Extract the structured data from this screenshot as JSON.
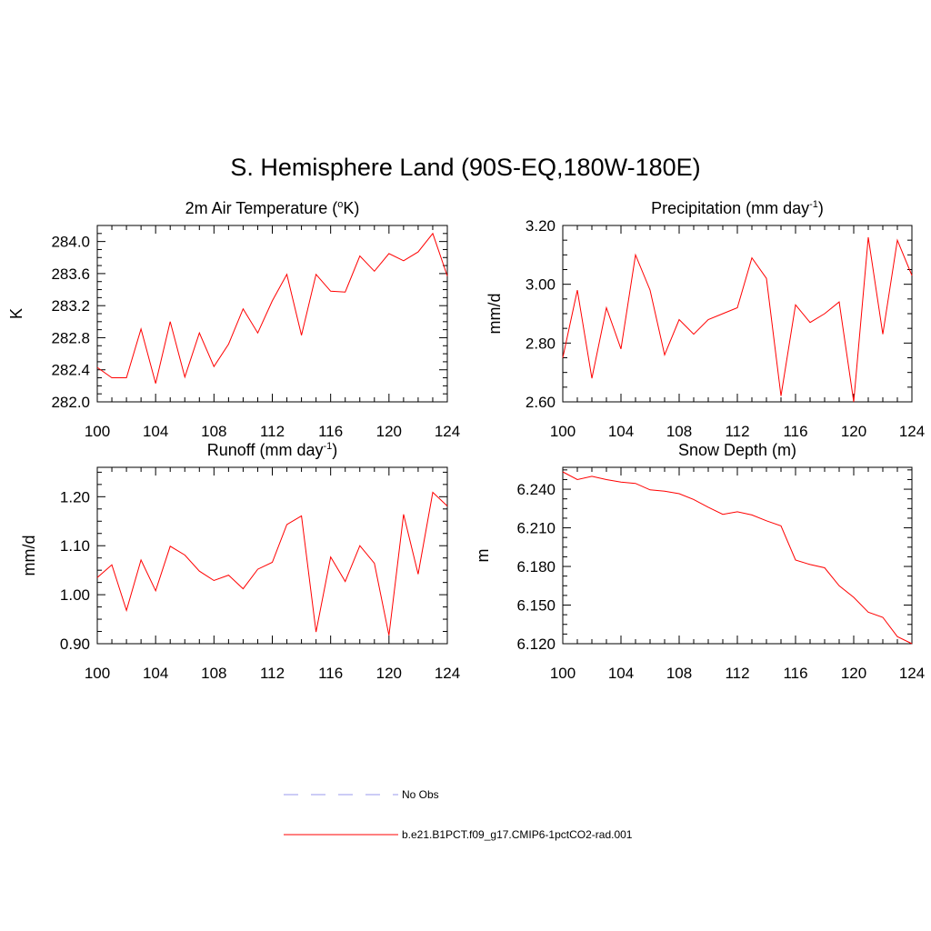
{
  "main_title": "S. Hemisphere Land (90S-EQ,180W-180E)",
  "legend": [
    {
      "label": "No Obs",
      "color": "#9999ee",
      "dash": true
    },
    {
      "label": "b.e21.B1PCT.f09_g17.CMIP6-1pctCO2-rad.001",
      "color": "#ff0000",
      "dash": false
    }
  ],
  "chart_data": [
    {
      "type": "line",
      "title": "2m Air Temperature (",
      "title_sup": "o",
      "title_post": "K)",
      "ylabel": "K",
      "xlim": [
        100,
        124
      ],
      "ylim": [
        282.0,
        284.2
      ],
      "xticks": [
        100,
        104,
        108,
        112,
        116,
        120,
        124
      ],
      "yticks": [
        282.0,
        282.4,
        282.8,
        283.2,
        283.6,
        284.0
      ],
      "ytick_labels": [
        "282.0",
        "282.4",
        "282.8",
        "283.2",
        "283.6",
        "284.0"
      ],
      "series_color": "#ff0000",
      "x": [
        100,
        101,
        102,
        103,
        104,
        105,
        106,
        107,
        108,
        109,
        110,
        111,
        112,
        113,
        114,
        115,
        116,
        117,
        118,
        119,
        120,
        121,
        122,
        123,
        124
      ],
      "values": [
        282.43,
        282.3,
        282.3,
        282.91,
        282.23,
        283.0,
        282.31,
        282.86,
        282.44,
        282.72,
        283.16,
        282.86,
        283.26,
        283.59,
        282.83,
        283.59,
        283.38,
        283.37,
        283.82,
        283.63,
        283.85,
        283.76,
        283.87,
        284.1,
        283.57
      ]
    },
    {
      "type": "line",
      "title": "Precipitation (mm day",
      "title_sup": "-1",
      "title_post": ")",
      "ylabel": "mm/d",
      "xlim": [
        100,
        124
      ],
      "ylim": [
        2.6,
        3.2
      ],
      "xticks": [
        100,
        104,
        108,
        112,
        116,
        120,
        124
      ],
      "yticks": [
        2.6,
        2.8,
        3.0,
        3.2
      ],
      "ytick_labels": [
        "2.60",
        "2.80",
        "3.00",
        "3.20"
      ],
      "series_color": "#ff0000",
      "x": [
        100,
        101,
        102,
        103,
        104,
        105,
        106,
        107,
        108,
        109,
        110,
        111,
        112,
        113,
        114,
        115,
        116,
        117,
        118,
        119,
        120,
        121,
        122,
        123,
        124
      ],
      "values": [
        2.75,
        2.98,
        2.68,
        2.92,
        2.78,
        3.1,
        2.98,
        2.76,
        2.88,
        2.83,
        2.88,
        2.9,
        2.92,
        3.09,
        3.02,
        2.62,
        2.93,
        2.87,
        2.9,
        2.94,
        2.6,
        3.16,
        2.83,
        3.15,
        3.03
      ]
    },
    {
      "type": "line",
      "title": "Runoff (mm day",
      "title_sup": "-1",
      "title_post": ")",
      "ylabel": "mm/d",
      "xlim": [
        100,
        124
      ],
      "ylim": [
        0.9,
        1.26
      ],
      "xticks": [
        100,
        104,
        108,
        112,
        116,
        120,
        124
      ],
      "yticks": [
        0.9,
        1.0,
        1.1,
        1.2
      ],
      "ytick_labels": [
        "0.90",
        "1.00",
        "1.10",
        "1.20"
      ],
      "series_color": "#ff0000",
      "x": [
        100,
        101,
        102,
        103,
        104,
        105,
        106,
        107,
        108,
        109,
        110,
        111,
        112,
        113,
        114,
        115,
        116,
        117,
        118,
        119,
        120,
        121,
        122,
        123,
        124
      ],
      "values": [
        1.035,
        1.061,
        0.968,
        1.071,
        1.008,
        1.099,
        1.081,
        1.048,
        1.029,
        1.04,
        1.012,
        1.052,
        1.066,
        1.143,
        1.161,
        0.924,
        1.077,
        1.027,
        1.1,
        1.064,
        0.917,
        1.164,
        1.042,
        1.209,
        1.181
      ]
    },
    {
      "type": "line",
      "title": "Snow Depth (m)",
      "title_sup": "",
      "title_post": "",
      "ylabel": "m",
      "xlim": [
        100,
        124
      ],
      "ylim": [
        6.12,
        6.257
      ],
      "xticks": [
        100,
        104,
        108,
        112,
        116,
        120,
        124
      ],
      "yticks": [
        6.12,
        6.15,
        6.18,
        6.21,
        6.24
      ],
      "ytick_labels": [
        "6.120",
        "6.150",
        "6.180",
        "6.210",
        "6.240"
      ],
      "series_color": "#ff0000",
      "x": [
        100,
        101,
        102,
        103,
        104,
        105,
        106,
        107,
        108,
        109,
        110,
        111,
        112,
        113,
        114,
        115,
        116,
        117,
        118,
        119,
        120,
        121,
        122,
        123,
        124
      ],
      "values": [
        6.2535,
        6.2475,
        6.25,
        6.2475,
        6.2455,
        6.2445,
        6.2395,
        6.2385,
        6.2365,
        6.232,
        6.226,
        6.2205,
        6.2225,
        6.22,
        6.2155,
        6.2115,
        6.185,
        6.1815,
        6.179,
        6.165,
        6.156,
        6.1445,
        6.1405,
        6.1255,
        6.12
      ]
    }
  ]
}
